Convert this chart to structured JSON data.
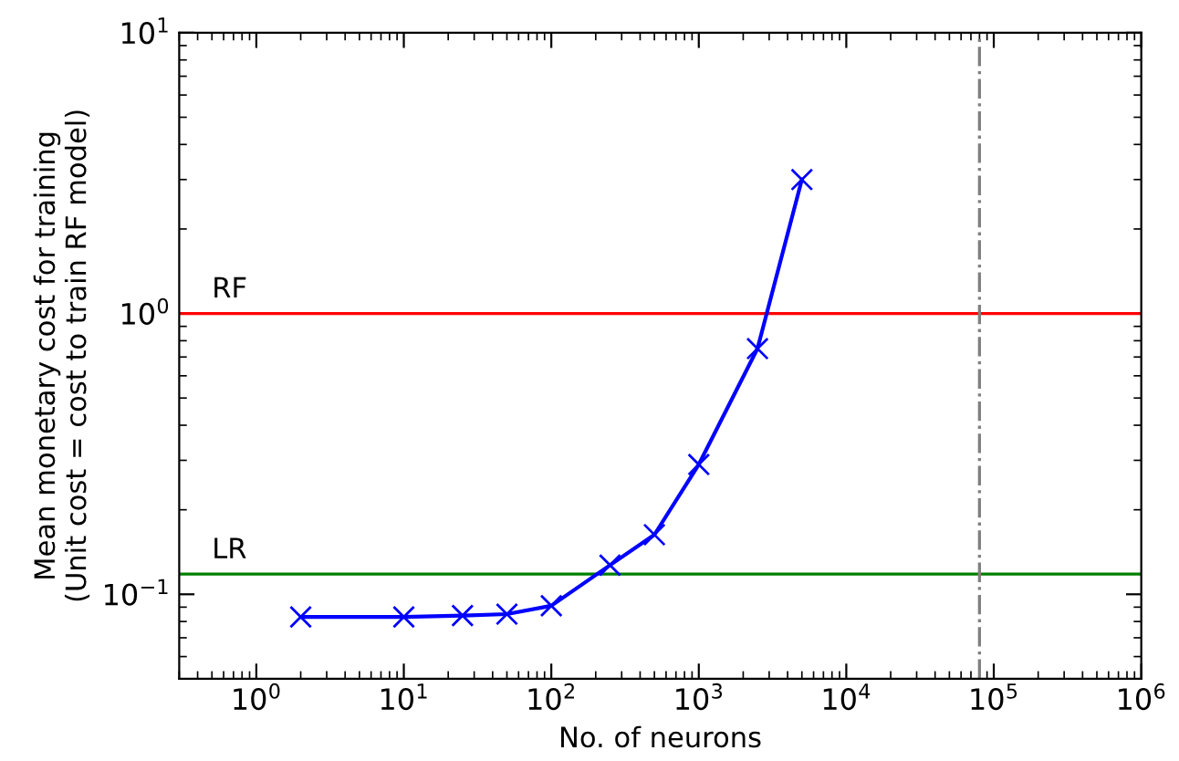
{
  "chart_data": {
    "type": "line",
    "xlabel": "No. of neurons",
    "ylabel": "Mean monetary cost for training\n(Unit cost = cost to train RF model)",
    "log": "xy",
    "xlim": [
      0.3,
      1000000
    ],
    "ylim": [
      0.05,
      10
    ],
    "xticks": [
      {
        "value": 1,
        "label": "10$^{0}$"
      },
      {
        "value": 10,
        "label": "10$^{1}$"
      },
      {
        "value": 100,
        "label": "10$^{2}$"
      },
      {
        "value": 1000,
        "label": "10$^{3}$"
      },
      {
        "value": 10000,
        "label": "10$^{4}$"
      },
      {
        "value": 100000,
        "label": "10$^{5}$"
      },
      {
        "value": 1000000,
        "label": "10$^{6}$"
      }
    ],
    "yticks": [
      {
        "value": 0.1,
        "label": "10$^{−1}$"
      },
      {
        "value": 1,
        "label": "10$^{0}$"
      },
      {
        "value": 10,
        "label": "10$^{1}$"
      }
    ],
    "x": [
      2,
      10,
      25,
      50,
      100,
      250,
      500,
      1000,
      2500,
      5000
    ],
    "series": [
      {
        "color": "#0000ff",
        "values": [
          0.083,
          0.083,
          0.084,
          0.085,
          0.091,
          0.127,
          0.163,
          0.29,
          0.75,
          3.0
        ]
      }
    ],
    "marker": "cross",
    "line_style": "solid",
    "grid": false,
    "ref_lines": [
      {
        "axis": "y",
        "value": 1,
        "label": "RF",
        "color": "#ff0000",
        "line_style": "solid"
      },
      {
        "axis": "y",
        "value": 0.118,
        "label": "LR",
        "color": "#008000",
        "line_style": "solid"
      },
      {
        "axis": "x",
        "value": 80000,
        "label": null,
        "color": "#808080",
        "line_style": "dashdot"
      }
    ]
  }
}
